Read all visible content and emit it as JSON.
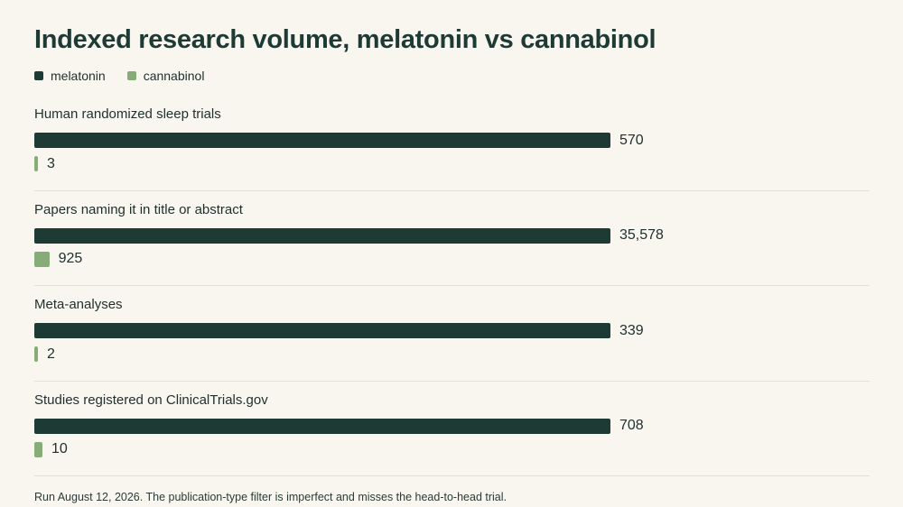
{
  "colors": {
    "melatonin": "#1e3a35",
    "cannabinol": "#86ad78"
  },
  "chart_data": {
    "type": "bar",
    "title": "Indexed research volume, melatonin vs cannabinol",
    "legend": [
      "melatonin",
      "cannabinol"
    ],
    "legend_position": "top-left",
    "scale": "each category scaled to its own maximum",
    "categories": [
      "Human randomized sleep trials",
      "Papers naming it in title or abstract",
      "Meta-analyses",
      "Studies registered on ClinicalTrials.gov"
    ],
    "series": [
      {
        "name": "melatonin",
        "values": [
          570,
          35578,
          339,
          708
        ],
        "labels": [
          "570",
          "35,578",
          "339",
          "708"
        ]
      },
      {
        "name": "cannabinol",
        "values": [
          3,
          925,
          2,
          10
        ],
        "labels": [
          "3",
          "925",
          "2",
          "10"
        ]
      }
    ]
  },
  "footnote": "Run August 12, 2026. The publication-type filter is imperfect and misses the head-to-head trial."
}
